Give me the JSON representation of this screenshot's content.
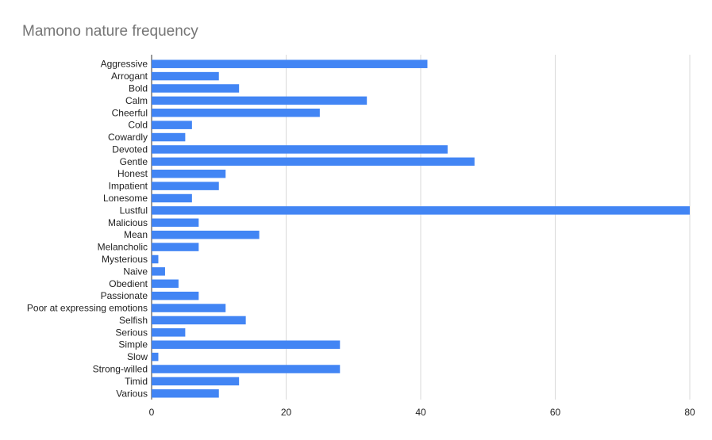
{
  "chart_data": {
    "type": "bar",
    "orientation": "horizontal",
    "title": "Mamono nature frequency",
    "xlabel": "",
    "ylabel": "",
    "xlim": [
      0,
      80
    ],
    "x_ticks": [
      0,
      20,
      40,
      60,
      80
    ],
    "grid": "vertical",
    "legend": "none",
    "bar_color": "#4285f4",
    "categories": [
      "Aggressive",
      "Arrogant",
      "Bold",
      "Calm",
      "Cheerful",
      "Cold",
      "Cowardly",
      "Devoted",
      "Gentle",
      "Honest",
      "Impatient",
      "Lonesome",
      "Lustful",
      "Malicious",
      "Mean",
      "Melancholic",
      "Mysterious",
      "Naive",
      "Obedient",
      "Passionate",
      "Poor at expressing emotions",
      "Selfish",
      "Serious",
      "Simple",
      "Slow",
      "Strong-willed",
      "Timid",
      "Various"
    ],
    "values": [
      41,
      10,
      13,
      32,
      25,
      6,
      5,
      44,
      48,
      11,
      10,
      6,
      80,
      7,
      16,
      7,
      1,
      2,
      4,
      7,
      11,
      14,
      5,
      28,
      1,
      28,
      13,
      10
    ]
  }
}
